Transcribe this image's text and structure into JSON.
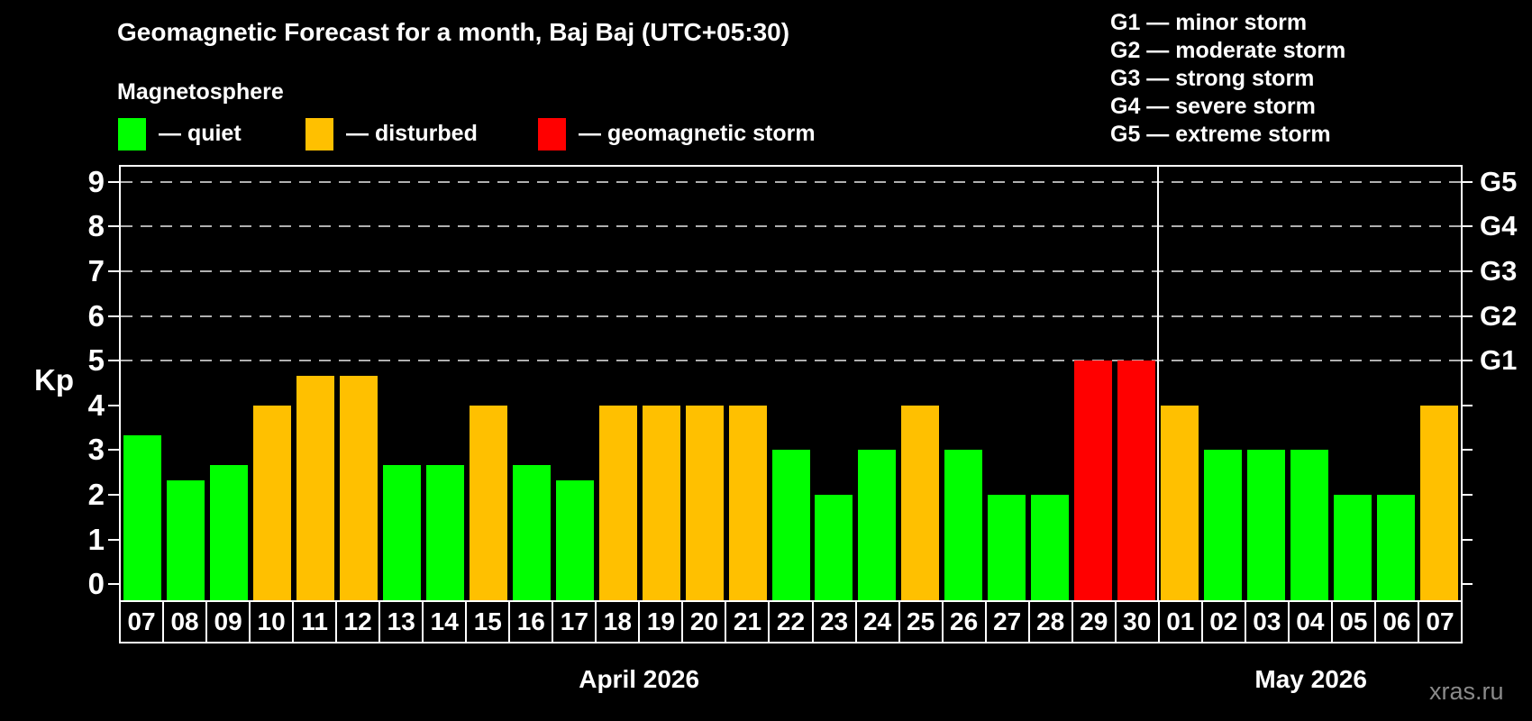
{
  "header": {
    "title": "Geomagnetic Forecast for a month, Baj Baj (UTC+05:30)",
    "subtitle": "Magnetosphere"
  },
  "legend": {
    "items": [
      {
        "key": "quiet",
        "label": "— quiet",
        "color": "#00ff00"
      },
      {
        "key": "disturbed",
        "label": "— disturbed",
        "color": "#ffc000"
      },
      {
        "key": "storm",
        "label": "— geomagnetic storm",
        "color": "#ff0000"
      }
    ]
  },
  "g_scale_legend": [
    {
      "code": "G1",
      "label": "— minor storm"
    },
    {
      "code": "G2",
      "label": "— moderate storm"
    },
    {
      "code": "G3",
      "label": "— strong storm"
    },
    {
      "code": "G4",
      "label": "— severe storm"
    },
    {
      "code": "G5",
      "label": "— extreme storm"
    }
  ],
  "watermark": "xras.ru",
  "chart_data": {
    "type": "bar",
    "title": "Geomagnetic Forecast for a month, Baj Baj (UTC+05:30)",
    "ylabel": "Kp",
    "ylim": [
      -0.36,
      9.34
    ],
    "yticks": [
      0,
      1,
      2,
      3,
      4,
      5,
      6,
      7,
      8,
      9
    ],
    "gridlines": [
      5,
      6,
      7,
      8,
      9
    ],
    "grid_color": "#b0b0b0",
    "right_axis_labels": [
      {
        "kp": 5,
        "label": "G1"
      },
      {
        "kp": 6,
        "label": "G2"
      },
      {
        "kp": 7,
        "label": "G3"
      },
      {
        "kp": 8,
        "label": "G4"
      },
      {
        "kp": 9,
        "label": "G5"
      }
    ],
    "months": [
      {
        "label": "April 2026",
        "days": 24
      },
      {
        "label": "May 2026",
        "days": 7
      }
    ],
    "colors": {
      "quiet": "#00ff00",
      "disturbed": "#ffc000",
      "storm": "#ff0000"
    },
    "bars": [
      {
        "date": "07",
        "kp": 3.33,
        "level": "quiet"
      },
      {
        "date": "08",
        "kp": 2.33,
        "level": "quiet"
      },
      {
        "date": "09",
        "kp": 2.67,
        "level": "quiet"
      },
      {
        "date": "10",
        "kp": 4.0,
        "level": "disturbed"
      },
      {
        "date": "11",
        "kp": 4.67,
        "level": "disturbed"
      },
      {
        "date": "12",
        "kp": 4.67,
        "level": "disturbed"
      },
      {
        "date": "13",
        "kp": 2.67,
        "level": "quiet"
      },
      {
        "date": "14",
        "kp": 2.67,
        "level": "quiet"
      },
      {
        "date": "15",
        "kp": 4.0,
        "level": "disturbed"
      },
      {
        "date": "16",
        "kp": 2.67,
        "level": "quiet"
      },
      {
        "date": "17",
        "kp": 2.33,
        "level": "quiet"
      },
      {
        "date": "18",
        "kp": 4.0,
        "level": "disturbed"
      },
      {
        "date": "19",
        "kp": 4.0,
        "level": "disturbed"
      },
      {
        "date": "20",
        "kp": 4.0,
        "level": "disturbed"
      },
      {
        "date": "21",
        "kp": 4.0,
        "level": "disturbed"
      },
      {
        "date": "22",
        "kp": 3.0,
        "level": "quiet"
      },
      {
        "date": "23",
        "kp": 2.0,
        "level": "quiet"
      },
      {
        "date": "24",
        "kp": 3.0,
        "level": "quiet"
      },
      {
        "date": "25",
        "kp": 4.0,
        "level": "disturbed"
      },
      {
        "date": "26",
        "kp": 3.0,
        "level": "quiet"
      },
      {
        "date": "27",
        "kp": 2.0,
        "level": "quiet"
      },
      {
        "date": "28",
        "kp": 2.0,
        "level": "quiet"
      },
      {
        "date": "29",
        "kp": 5.0,
        "level": "storm"
      },
      {
        "date": "30",
        "kp": 5.0,
        "level": "storm"
      },
      {
        "date": "01",
        "kp": 4.0,
        "level": "disturbed"
      },
      {
        "date": "02",
        "kp": 3.0,
        "level": "quiet"
      },
      {
        "date": "03",
        "kp": 3.0,
        "level": "quiet"
      },
      {
        "date": "04",
        "kp": 3.0,
        "level": "quiet"
      },
      {
        "date": "05",
        "kp": 2.0,
        "level": "quiet"
      },
      {
        "date": "06",
        "kp": 2.0,
        "level": "quiet"
      },
      {
        "date": "07",
        "kp": 4.0,
        "level": "disturbed"
      }
    ]
  }
}
